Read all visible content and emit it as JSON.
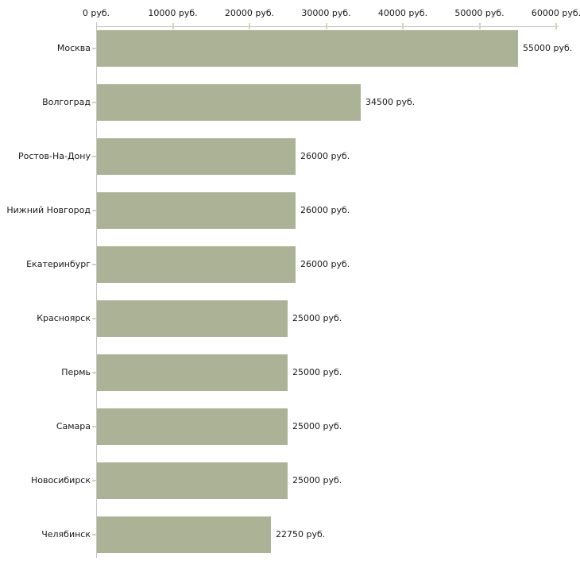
{
  "chart_data": {
    "type": "bar",
    "orientation": "horizontal",
    "title": "",
    "categories": [
      "Москва",
      "Волгоград",
      "Ростов-На-Дону",
      "Нижний Новгород",
      "Екатеринбург",
      "Красноярск",
      "Пермь",
      "Самара",
      "Новосибирск",
      "Челябинск"
    ],
    "values": [
      55000,
      34500,
      26000,
      26000,
      26000,
      25000,
      25000,
      25000,
      25000,
      22750
    ],
    "bar_labels": [
      "55000 руб.",
      "34500 руб.",
      "26000 руб.",
      "26000 руб.",
      "26000 руб.",
      "25000 руб.",
      "25000 руб.",
      "25000 руб.",
      "25000 руб.",
      "22750 руб."
    ],
    "x_axis": {
      "position": "top",
      "tick_labels": [
        "0 руб.",
        "10000 руб.",
        "20000 руб.",
        "30000 руб.",
        "40000 руб.",
        "50000 руб.",
        "60000 руб."
      ],
      "tick_values": [
        0,
        10000,
        20000,
        30000,
        40000,
        50000,
        60000
      ],
      "min": 0,
      "max": 60000
    },
    "ylabel": "",
    "xlabel": "",
    "legend": "none",
    "grid": false,
    "colors": {
      "bar": "#abb296",
      "axis_line": "#c6c6c6",
      "tick_mark": "#d6d3ba",
      "text": "#1a1a1a",
      "background": "#ffffff"
    }
  }
}
